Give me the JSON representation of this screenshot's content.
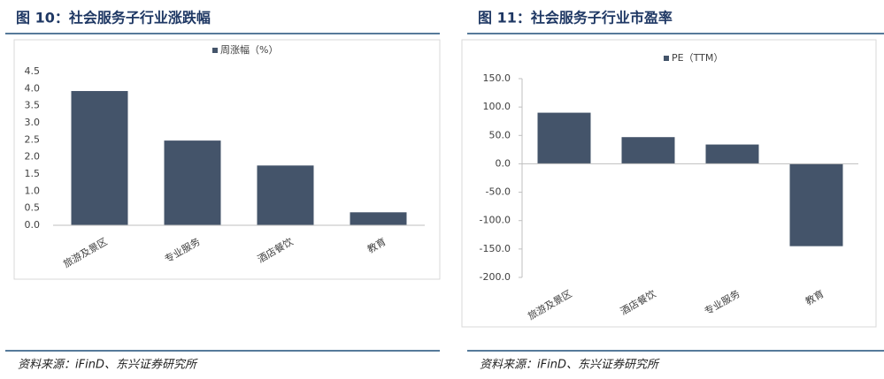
{
  "chart_data": [
    {
      "type": "bar",
      "title": "图 10：社会服务子行业涨跌幅",
      "source": "资料来源：iFinD、东兴证券研究所",
      "series": [
        {
          "name": "周涨幅（%）",
          "color": "#44546a",
          "values": [
            3.93,
            2.48,
            1.75,
            0.38
          ]
        }
      ],
      "categories": [
        "旅游及景区",
        "专业服务",
        "酒店餐饮",
        "教育"
      ],
      "ylim": [
        0,
        4.5
      ],
      "yticks": [
        {
          "value": 0,
          "label": "0.0"
        },
        {
          "value": 0.5,
          "label": "0.5"
        },
        {
          "value": 1,
          "label": "1.0"
        },
        {
          "value": 1.5,
          "label": "1.5"
        },
        {
          "value": 2,
          "label": "2.0"
        },
        {
          "value": 2.5,
          "label": "2.5"
        },
        {
          "value": 3,
          "label": "3.0"
        },
        {
          "value": 3.5,
          "label": "3.5"
        },
        {
          "value": 4,
          "label": "4.0"
        },
        {
          "value": 4.5,
          "label": "4.5"
        }
      ],
      "legend": "top"
    },
    {
      "type": "bar",
      "title": "图 11：社会服务子行业市盈率",
      "source": "资料来源：iFinD、东兴证券研究所",
      "series": [
        {
          "name": "PE（TTM）",
          "color": "#44546a",
          "values": [
            90,
            47,
            34,
            -145
          ]
        }
      ],
      "categories": [
        "旅游及景区",
        "酒店餐饮",
        "专业服务",
        "教育"
      ],
      "ylim": [
        -200,
        150
      ],
      "yticks": [
        {
          "value": -200,
          "label": "-200.0"
        },
        {
          "value": -150,
          "label": "-150.0"
        },
        {
          "value": -100,
          "label": "-100.0"
        },
        {
          "value": -50,
          "label": "-50.0"
        },
        {
          "value": 0,
          "label": "0.0"
        },
        {
          "value": 50,
          "label": "50.0"
        },
        {
          "value": 100,
          "label": "100.0"
        },
        {
          "value": 150,
          "label": "150.0"
        }
      ],
      "legend": "top"
    }
  ]
}
